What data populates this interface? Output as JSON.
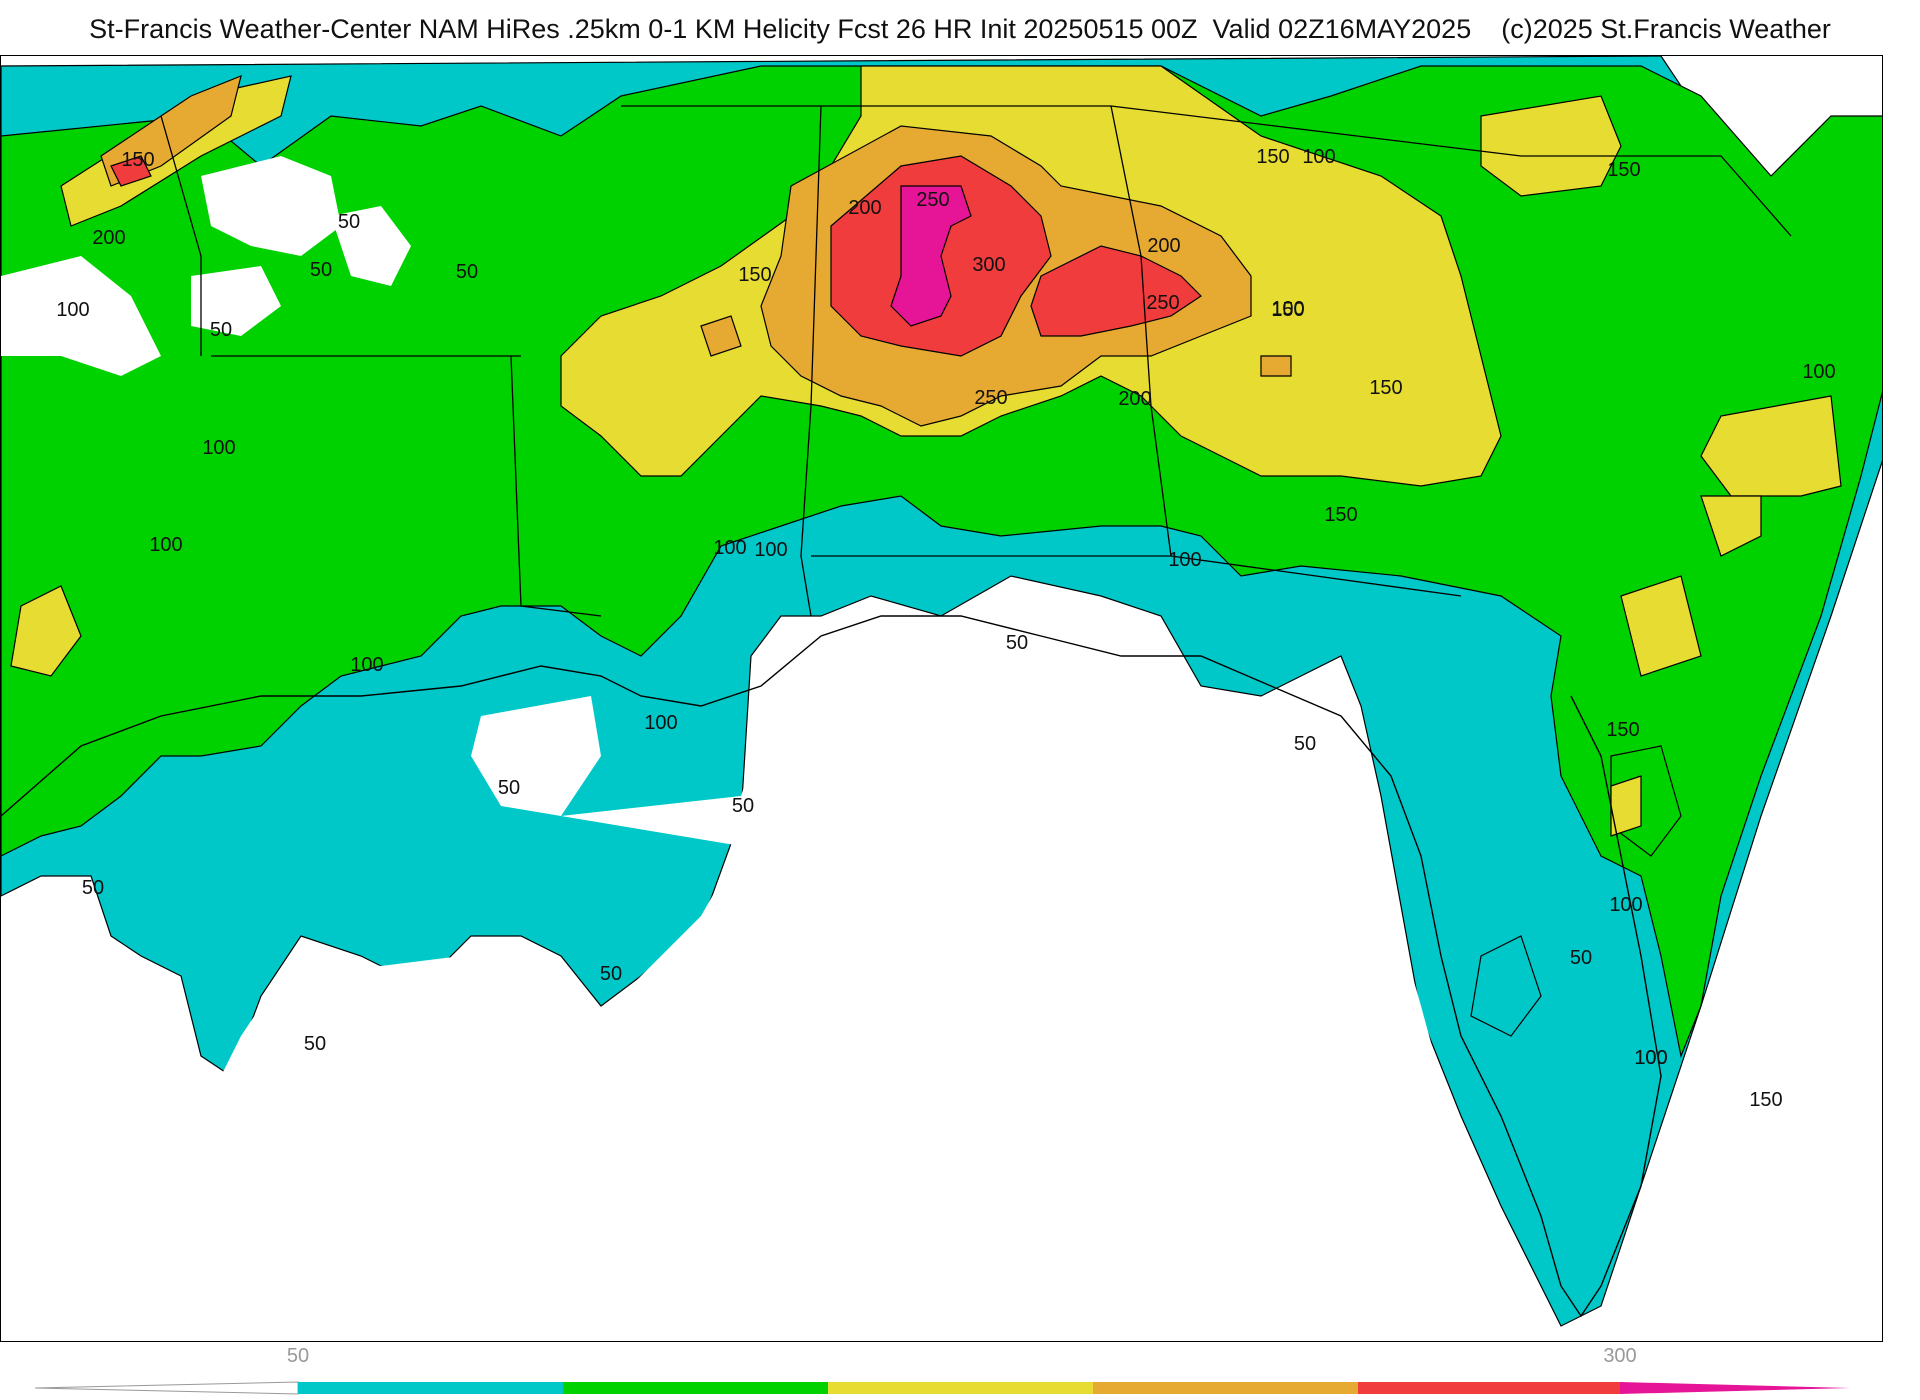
{
  "header": {
    "title": "St-Francis Weather-Center NAM HiRes .25km 0-1 KM Helicity Fcst 26 HR Init 20250515 00Z  Valid 02Z16MAY2025    (c)2025 St.Francis Weather"
  },
  "colors": {
    "c50": "#00c8c8",
    "c100": "#00d200",
    "c150": "#e6dc32",
    "c200": "#e6aa32",
    "c250": "#f03c3c",
    "c300": "#e61496"
  },
  "contour_labels": [
    "150",
    "200",
    "50",
    "50",
    "50",
    "100",
    "50",
    "100",
    "100",
    "150",
    "200",
    "250",
    "300",
    "250",
    "200",
    "250",
    "200",
    "150",
    "150",
    "100",
    "150",
    "150",
    "100",
    "100",
    "100",
    "150",
    "150",
    "100",
    "100",
    "50",
    "50",
    "100",
    "50",
    "50",
    "50",
    "50",
    "50",
    "100",
    "50",
    "100",
    "100",
    "150",
    "100"
  ],
  "colorbar": {
    "tick_labels": [
      "50",
      "300"
    ]
  }
}
